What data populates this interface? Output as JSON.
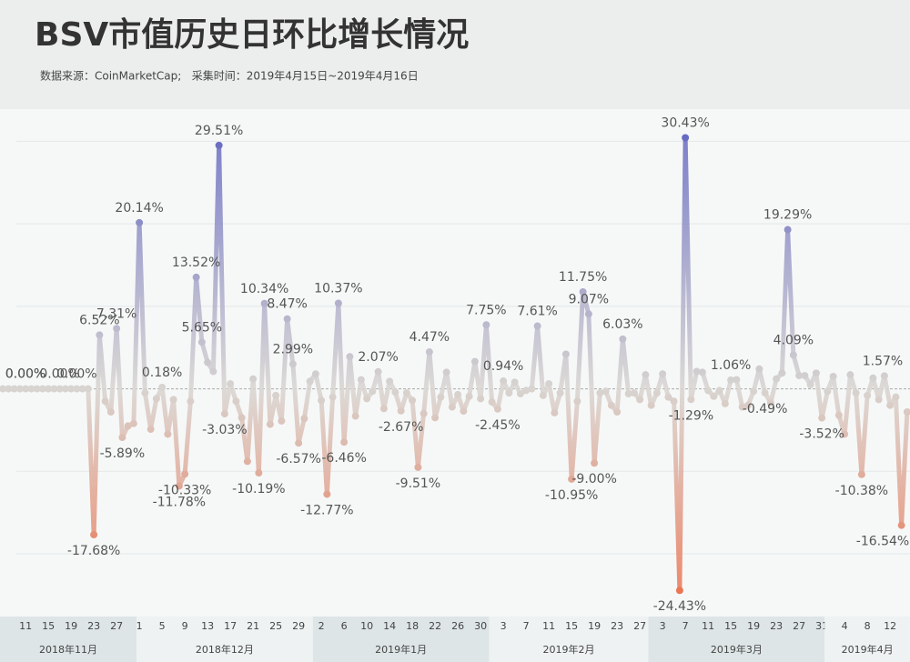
{
  "chart_data": {
    "type": "line",
    "title": "BSV市值历史日环比增长情况",
    "subtitle": "数据来源：CoinMarketCap;   采集时间：2019年4月15日~2019年4月16日",
    "ylim": [
      -27.6,
      33.9
    ],
    "yticks": [
      -20,
      -10,
      0,
      10,
      20,
      30
    ],
    "grid": true,
    "colors": {
      "high": "#5b5fc0",
      "zero": "#d8d4d0",
      "low": "#ec6a44"
    },
    "x_groups": [
      {
        "label": "2018年11月",
        "categories": [
          null,
          null,
          null,
          null,
          "11",
          null,
          null,
          null,
          "15",
          null,
          null,
          null,
          "19",
          null,
          null,
          null,
          "23",
          null,
          null,
          null,
          "27",
          null,
          null,
          null
        ],
        "values": [
          0,
          0,
          0,
          0,
          0,
          0,
          0,
          0,
          0,
          0,
          0,
          0,
          0,
          0,
          0,
          0,
          -17.68,
          6.52,
          -1.5,
          -2.8,
          7.31,
          -5.89,
          -4.5,
          -4.2
        ],
        "value_labels": [
          null,
          "0.00%",
          null,
          null,
          "0.00%",
          null,
          null,
          null,
          null,
          null,
          "0.00%",
          null,
          null,
          "0.00%",
          null,
          null,
          "-17.68%",
          "6.52%",
          null,
          null,
          "7.31%",
          "-5.89%",
          null,
          null
        ]
      },
      {
        "label": "2018年12月",
        "categories": [
          "1",
          null,
          null,
          null,
          "5",
          null,
          null,
          null,
          "9",
          null,
          null,
          null,
          "13",
          null,
          null,
          null,
          "17",
          null,
          null,
          null,
          "21",
          null,
          null,
          null,
          "25",
          null,
          null,
          null,
          "29",
          null,
          null
        ],
        "values": [
          20.14,
          -0.5,
          -4.9,
          -1.2,
          0.18,
          -5.5,
          -1.3,
          -11.78,
          -10.33,
          -1.5,
          13.52,
          5.65,
          3.2,
          2.1,
          29.51,
          -3.03,
          0.6,
          -1.5,
          -3.5,
          -8.8,
          1.2,
          -10.19,
          10.34,
          -4.3,
          -0.8,
          -3.9,
          8.47,
          2.99,
          -6.57,
          -3.6,
          0.9
        ],
        "value_labels": [
          "20.14%",
          null,
          null,
          null,
          "0.18%",
          null,
          null,
          "-11.78%",
          "-10.33%",
          null,
          "13.52%",
          "5.65%",
          null,
          null,
          "29.51%",
          "-3.03%",
          null,
          null,
          null,
          null,
          null,
          "-10.19%",
          "10.34%",
          null,
          null,
          null,
          "8.47%",
          "2.99%",
          "-6.57%",
          null,
          null
        ]
      },
      {
        "label": "2019年1月",
        "categories": [
          null,
          "2",
          null,
          null,
          null,
          "6",
          null,
          null,
          null,
          "10",
          null,
          null,
          null,
          "14",
          null,
          null,
          null,
          "18",
          null,
          null,
          null,
          "22",
          null,
          null,
          null,
          "26",
          null,
          null,
          null,
          "30",
          null
        ],
        "values": [
          1.8,
          -1.4,
          -12.77,
          -1.0,
          10.37,
          -6.46,
          3.9,
          -3.3,
          1.1,
          -1.2,
          -0.3,
          2.07,
          -2.4,
          0.9,
          -0.4,
          -2.67,
          -0.5,
          -1.4,
          -9.51,
          -3.0,
          4.47,
          -3.5,
          -1.0,
          2.0,
          -2.2,
          -0.7,
          -2.7,
          -0.9,
          3.3,
          -1.2,
          7.75
        ],
        "value_labels": [
          null,
          null,
          "-12.77%",
          null,
          "10.37%",
          "-6.46%",
          null,
          null,
          null,
          null,
          null,
          "2.07%",
          null,
          null,
          null,
          "-2.67%",
          null,
          null,
          "-9.51%",
          null,
          "4.47%",
          null,
          null,
          null,
          null,
          null,
          null,
          null,
          null,
          null,
          "7.75%"
        ]
      },
      {
        "label": "2019年2月",
        "categories": [
          null,
          null,
          "3",
          null,
          null,
          null,
          "7",
          null,
          null,
          null,
          "11",
          null,
          null,
          null,
          "15",
          null,
          null,
          null,
          "19",
          null,
          null,
          null,
          "23",
          null,
          null,
          null,
          "27",
          null
        ],
        "values": [
          -1.6,
          -2.45,
          0.94,
          -0.5,
          0.8,
          -0.6,
          -0.2,
          0,
          7.61,
          -0.8,
          0.6,
          -2.9,
          -0.5,
          4.2,
          -10.95,
          -1.5,
          11.75,
          9.07,
          -9.0,
          -0.5,
          -0.3,
          -2.0,
          -2.8,
          6.03,
          -0.6,
          -0.5,
          -1.3,
          1.7
        ],
        "value_labels": [
          null,
          "-2.45%",
          "0.94%",
          null,
          null,
          null,
          null,
          null,
          "7.61%",
          null,
          null,
          null,
          null,
          null,
          "-10.95%",
          null,
          "11.75%",
          "9.07%",
          "-9.00%",
          null,
          null,
          null,
          null,
          "6.03%",
          null,
          null,
          null,
          null
        ]
      },
      {
        "label": "2019年3月",
        "categories": [
          null,
          null,
          "3",
          null,
          null,
          null,
          "7",
          null,
          null,
          null,
          "11",
          null,
          null,
          null,
          "15",
          null,
          null,
          null,
          "19",
          null,
          null,
          null,
          "23",
          null,
          null,
          null,
          "27",
          null,
          null,
          null,
          "31"
        ],
        "values": [
          -2.0,
          -0.5,
          1.8,
          -1.0,
          -1.5,
          -24.43,
          30.43,
          -1.29,
          2.1,
          2.0,
          -0.2,
          -0.9,
          -0.2,
          -1.8,
          1.06,
          1.1,
          -2.2,
          -2.0,
          -0.3,
          2.4,
          -0.49,
          -1.7,
          1.2,
          1.9,
          19.29,
          4.09,
          1.6,
          1.6,
          0.5,
          1.9,
          -3.52
        ],
        "value_labels": [
          null,
          null,
          null,
          null,
          null,
          "-24.43%",
          "30.43%",
          "-1.29%",
          null,
          null,
          null,
          null,
          null,
          null,
          "1.06%",
          null,
          null,
          null,
          null,
          null,
          "-0.49%",
          null,
          null,
          null,
          "19.29%",
          "4.09%",
          null,
          null,
          null,
          null,
          "-3.52%"
        ]
      },
      {
        "label": "2019年4月",
        "categories": [
          null,
          null,
          null,
          "4",
          null,
          null,
          null,
          "8",
          null,
          null,
          null,
          "12",
          null,
          null,
          null
        ],
        "values": [
          -0.3,
          1.5,
          -3.2,
          -5.5,
          1.7,
          -0.5,
          -10.38,
          -0.8,
          1.3,
          -1.3,
          1.57,
          -2.0,
          -1.0,
          -16.54,
          -2.8
        ],
        "value_labels": [
          null,
          null,
          null,
          null,
          null,
          null,
          "-10.38%",
          null,
          null,
          null,
          "1.57%",
          null,
          null,
          "-16.54%",
          null
        ]
      }
    ]
  }
}
